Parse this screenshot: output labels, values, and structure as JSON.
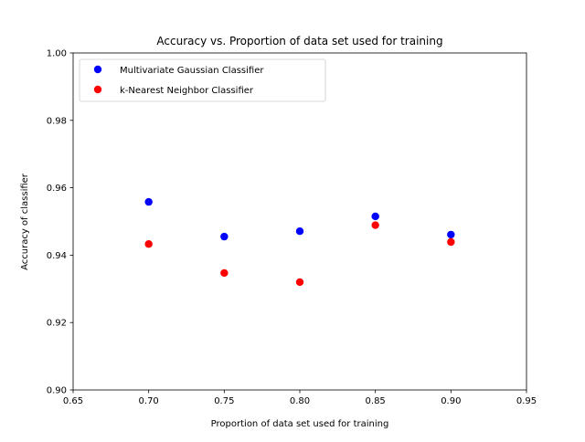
{
  "chart_data": {
    "type": "scatter",
    "title": "Accuracy vs. Proportion of data set used for training",
    "xlabel": "Proportion of data set used for training",
    "ylabel": "Accuracy of classifier",
    "xlim": [
      0.65,
      0.95
    ],
    "ylim": [
      0.9,
      1.0
    ],
    "xticks": [
      0.65,
      0.7,
      0.75,
      0.8,
      0.85,
      0.9,
      0.95
    ],
    "xtick_labels": [
      "0.65",
      "0.70",
      "0.75",
      "0.80",
      "0.85",
      "0.90",
      "0.95"
    ],
    "yticks": [
      0.9,
      0.92,
      0.94,
      0.96,
      0.98,
      1.0
    ],
    "ytick_labels": [
      "0.90",
      "0.92",
      "0.94",
      "0.96",
      "0.98",
      "1.00"
    ],
    "grid": false,
    "legend_position": "upper-left",
    "series": [
      {
        "name": "Multivariate Gaussian Classifier",
        "color": "#0000ff",
        "x": [
          0.7,
          0.75,
          0.8,
          0.85,
          0.9
        ],
        "y": [
          0.9558,
          0.9455,
          0.9471,
          0.9515,
          0.9461
        ]
      },
      {
        "name": "k-Nearest Neighbor Classifier",
        "color": "#ff0000",
        "x": [
          0.7,
          0.75,
          0.8,
          0.85,
          0.9
        ],
        "y": [
          0.9433,
          0.9347,
          0.932,
          0.9489,
          0.9439
        ]
      }
    ]
  }
}
